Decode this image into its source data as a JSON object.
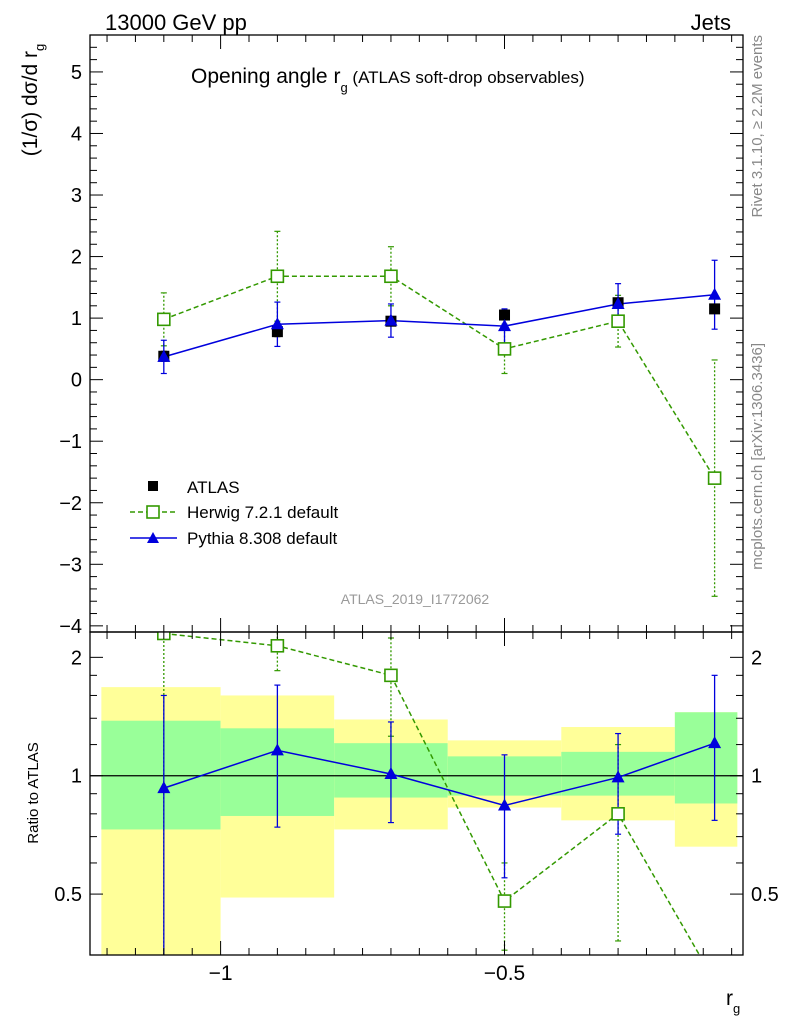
{
  "header": {
    "left": "13000 GeV pp",
    "right": "Jets"
  },
  "side_labels": {
    "rivet": "Rivet 3.1.10, ≥ 2.2M events",
    "mcplots": "mcplots.cern.ch [arXiv:1306.3436]"
  },
  "analysis_id": "ATLAS_2019_I1772062",
  "colors": {
    "atlas": "#000000",
    "herwig": "#339900",
    "pythia": "#0000dd",
    "band_inner": "#99ff99",
    "band_outer": "#ffff99"
  },
  "chart_data": [
    {
      "type": "scatter",
      "title_main": "Opening angle r",
      "title_sub": "g",
      "title_rest": " (ATLAS soft-drop observables)",
      "ylabel_main": "(1/σ) dσ/d r",
      "ylabel_sub": "g",
      "ylim": [
        -4.1,
        5.6
      ],
      "xlim": [
        -1.23,
        -0.08
      ],
      "yticks": [
        -4,
        -3,
        -2,
        -1,
        0,
        1,
        2,
        3,
        4,
        5
      ],
      "ytick_labels": [
        "−4",
        "−3",
        "−2",
        "−1",
        "0",
        "1",
        "2",
        "3",
        "4",
        "5"
      ],
      "legend_position": "bottom-left",
      "series": [
        {
          "key": "atlas",
          "name": "ATLAS",
          "x": [
            -1.1,
            -0.9,
            -0.7,
            -0.5,
            -0.3,
            -0.13
          ],
          "y": [
            0.38,
            0.78,
            0.95,
            1.05,
            1.25,
            1.15
          ],
          "yerr": [
            0.08,
            0.08,
            0.07,
            0.06,
            0.06,
            0.07
          ]
        },
        {
          "key": "herwig",
          "name": "Herwig 7.2.1 default",
          "x": [
            -1.1,
            -0.9,
            -0.7,
            -0.5,
            -0.3,
            -0.13
          ],
          "y": [
            0.98,
            1.68,
            1.68,
            0.5,
            0.95,
            -1.6
          ],
          "yerr": [
            0.43,
            0.73,
            0.48,
            0.4,
            0.42,
            1.92
          ]
        },
        {
          "key": "pythia",
          "name": "Pythia 8.308 default",
          "x": [
            -1.1,
            -0.9,
            -0.7,
            -0.5,
            -0.3,
            -0.13
          ],
          "y": [
            0.37,
            0.9,
            0.96,
            0.87,
            1.23,
            1.38
          ],
          "yerr": [
            0.27,
            0.36,
            0.27,
            0.28,
            0.33,
            0.56
          ]
        }
      ]
    },
    {
      "type": "scatter",
      "ylabel": "Ratio to ATLAS",
      "xlabel_main": "r",
      "xlabel_sub": "g",
      "ylim": [
        0.35,
        2.32
      ],
      "xlim": [
        -1.23,
        -0.08
      ],
      "yticks": [
        0.5,
        1,
        2
      ],
      "ytick_labels": [
        "0.5",
        "1",
        "2"
      ],
      "xticks": [
        -1,
        -0.5
      ],
      "xtick_labels": [
        "−1",
        "−0.5"
      ],
      "bands": [
        {
          "x0": -1.21,
          "x1": -1.0,
          "inner": [
            0.73,
            1.38
          ],
          "outer": [
            0.35,
            1.68
          ]
        },
        {
          "x0": -1.0,
          "x1": -0.8,
          "inner": [
            0.79,
            1.32
          ],
          "outer": [
            0.49,
            1.6
          ]
        },
        {
          "x0": -0.8,
          "x1": -0.6,
          "inner": [
            0.88,
            1.21
          ],
          "outer": [
            0.73,
            1.39
          ]
        },
        {
          "x0": -0.6,
          "x1": -0.4,
          "inner": [
            0.89,
            1.12
          ],
          "outer": [
            0.83,
            1.23
          ]
        },
        {
          "x0": -0.4,
          "x1": -0.2,
          "inner": [
            0.89,
            1.15
          ],
          "outer": [
            0.77,
            1.33
          ]
        },
        {
          "x0": -0.2,
          "x1": -0.09,
          "inner": [
            0.85,
            1.45
          ],
          "outer": [
            0.66,
            1.45
          ]
        }
      ],
      "series": [
        {
          "key": "herwig",
          "name": "Herwig 7.2.1 default",
          "x": [
            -1.1,
            -0.9,
            -0.7,
            -0.5,
            -0.3,
            -0.13
          ],
          "y": [
            2.3,
            2.14,
            1.8,
            0.48,
            0.8,
            0.3
          ],
          "ylo": [
            0.35,
            1.85,
            1.26,
            0.36,
            0.38,
            null
          ],
          "yhi": [
            2.32,
            2.32,
            2.24,
            0.6,
            1.2,
            null
          ]
        },
        {
          "key": "pythia",
          "name": "Pythia 8.308 default",
          "x": [
            -1.1,
            -0.9,
            -0.7,
            -0.5,
            -0.3,
            -0.13
          ],
          "y": [
            0.93,
            1.16,
            1.01,
            0.84,
            0.99,
            1.21
          ],
          "ylo": [
            0.35,
            0.74,
            0.76,
            0.55,
            0.71,
            0.77
          ],
          "yhi": [
            1.6,
            1.7,
            1.37,
            1.13,
            1.28,
            1.8
          ]
        }
      ]
    }
  ]
}
